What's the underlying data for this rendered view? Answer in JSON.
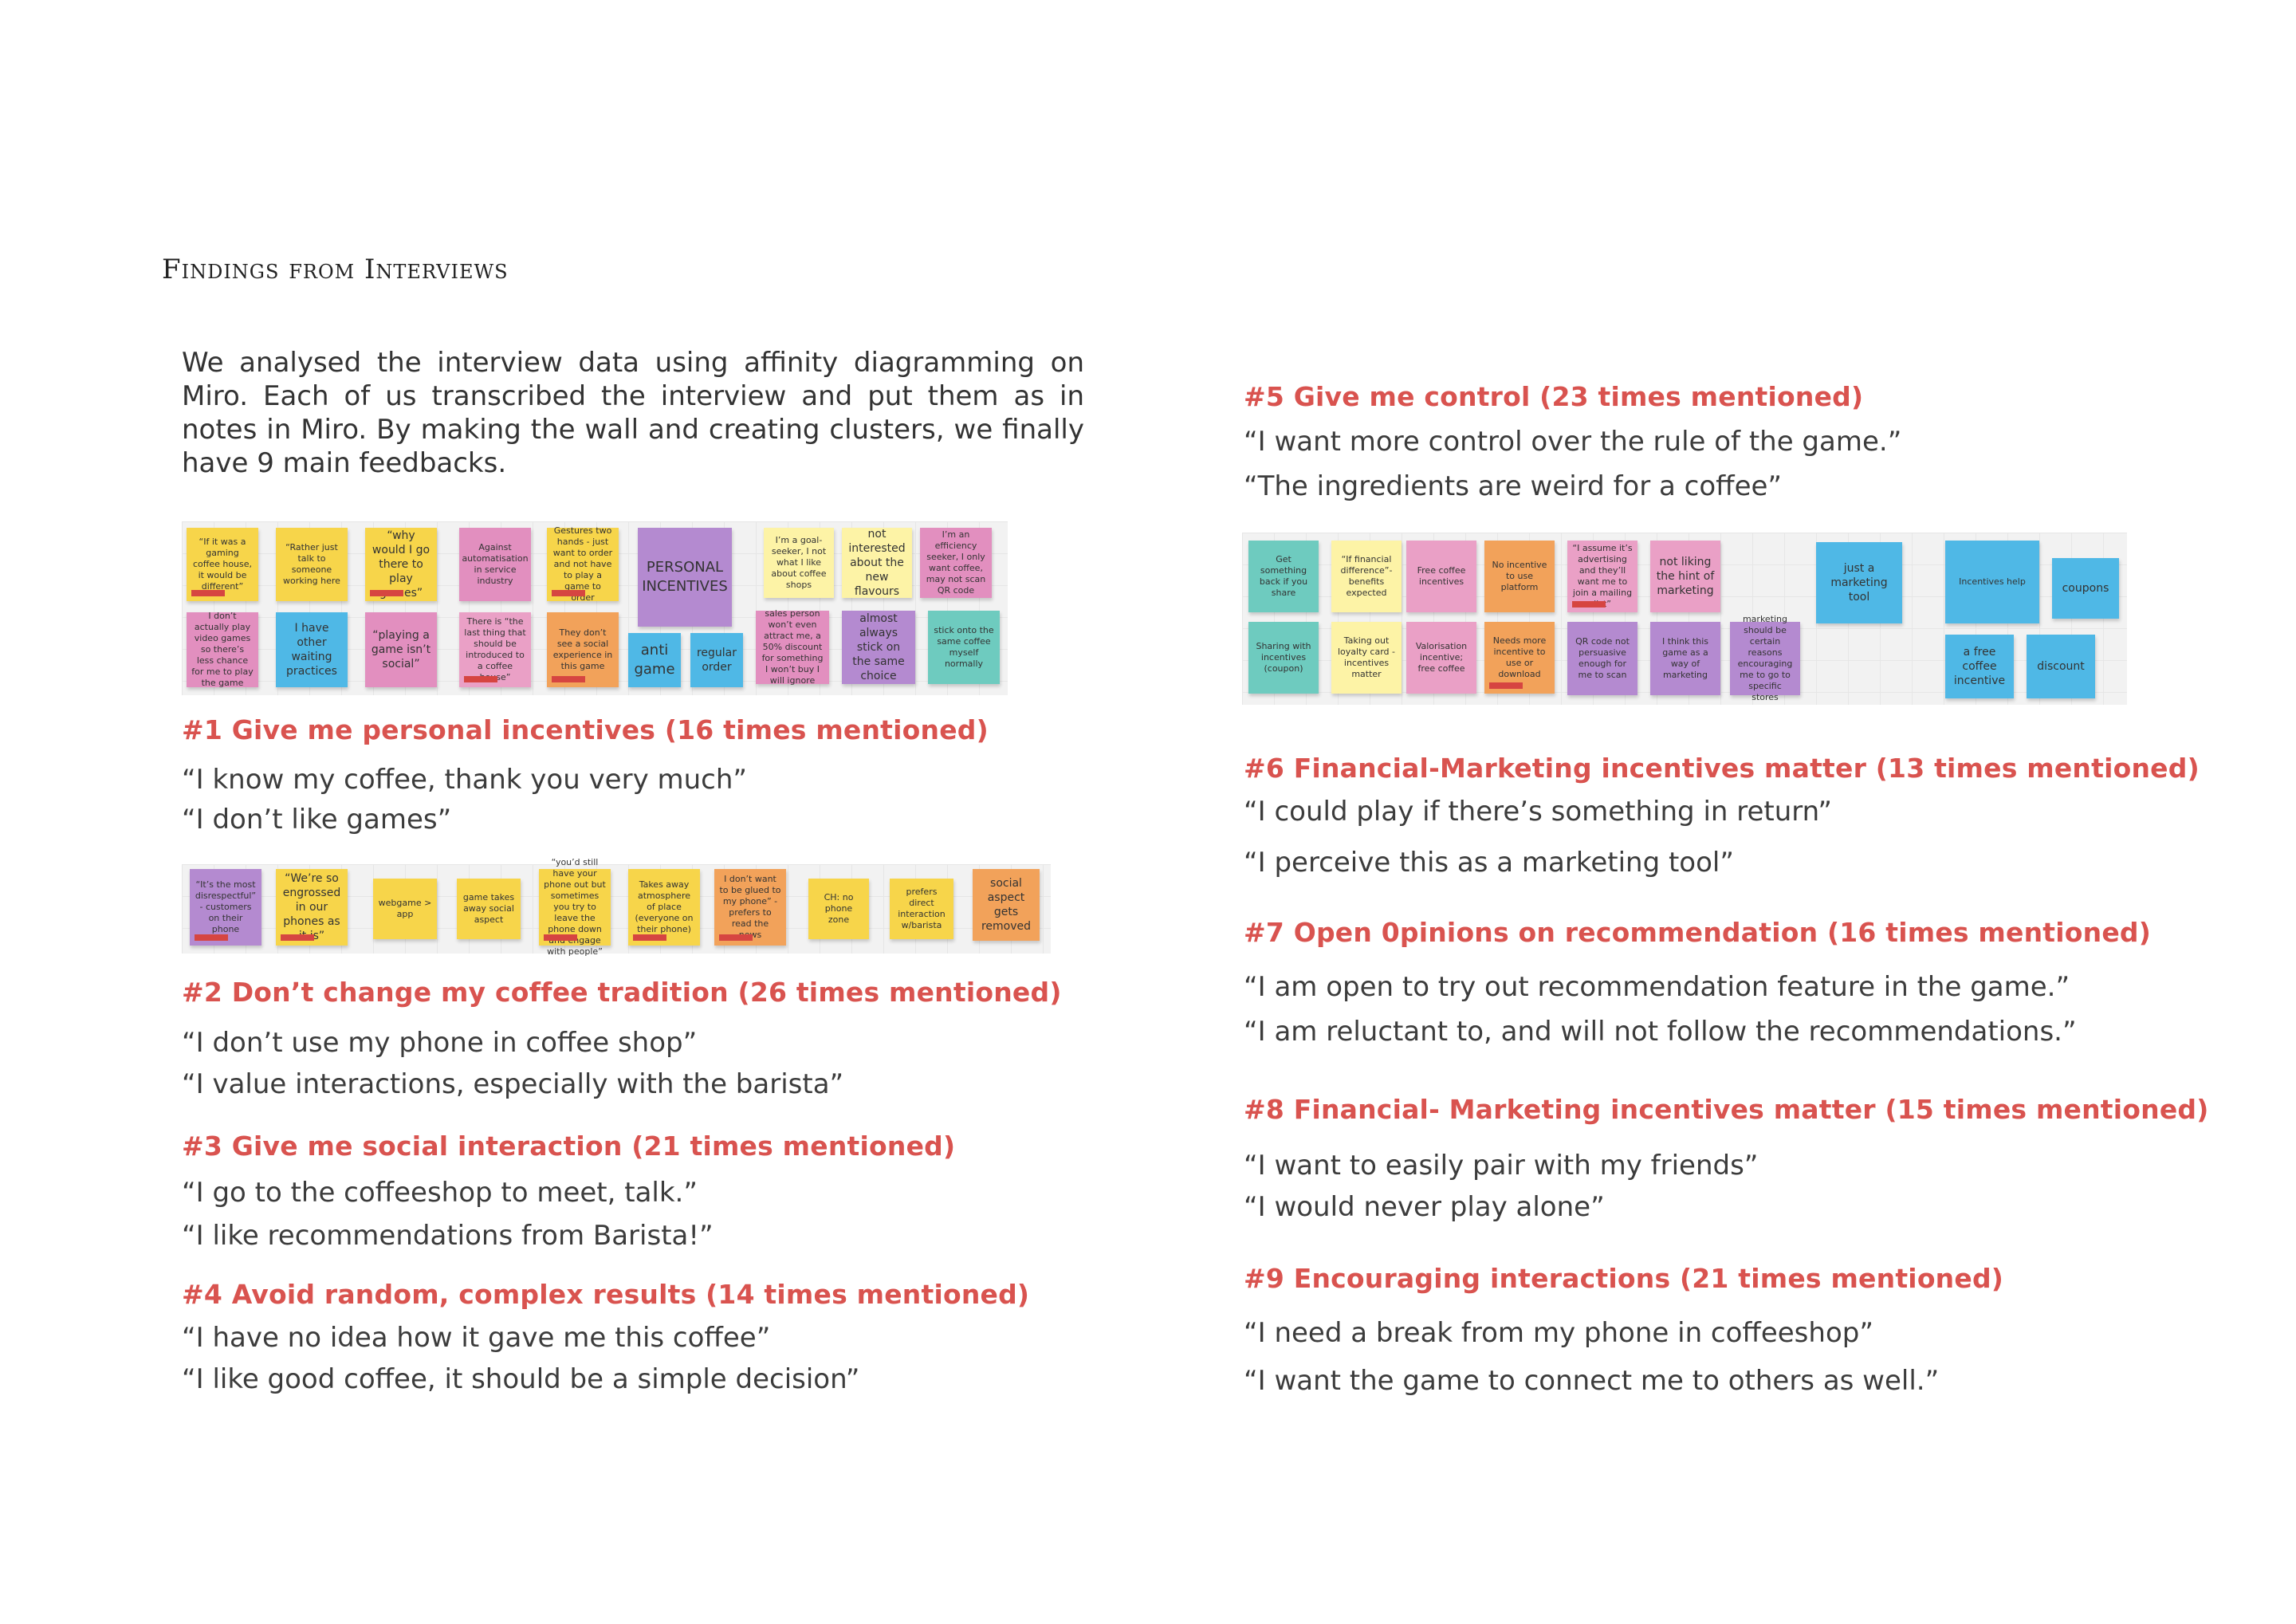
{
  "title": "Findings from Interviews",
  "intro": "We analysed the interview data using affinity diagramming on Miro. Each of us transcribed the interview and put them as in notes in Miro. By making the wall and creating clusters, we finally have 9 main feedbacks.",
  "findings": [
    {
      "heading": "#1 Give me personal incentives (16 times mentioned)",
      "quotes": [
        "“I know my coffee, thank you very much”",
        "“I don’t like games”"
      ]
    },
    {
      "heading": "#2 Don’t change my coffee tradition (26 times mentioned)",
      "quotes": [
        "“I don’t use my phone in coffee shop”",
        "“I value interactions, especially with the barista”"
      ]
    },
    {
      "heading": "#3 Give me social interaction (21 times mentioned)",
      "quotes": [
        "“I go to the coffeeshop to meet, talk.”",
        "“I like recommendations from Barista!”"
      ]
    },
    {
      "heading": "#4 Avoid random, complex results (14 times mentioned)",
      "quotes": [
        "“I have no idea how it gave me this coffee”",
        "“I like good coffee, it should be a simple decision”"
      ]
    },
    {
      "heading": "#5 Give me control  (23 times mentioned)",
      "quotes": [
        "“I want more control over the rule of the game.”",
        "“The ingredients are weird for a coffee”"
      ]
    },
    {
      "heading": "#6 Financial-Marketing incentives matter (13 times mentioned)",
      "quotes": [
        "“I could play if there’s something in return”",
        "“I perceive this as a marketing tool”"
      ]
    },
    {
      "heading": "#7 Open 0pinions on recommendation (16 times mentioned)",
      "quotes": [
        "“I am open to try out recommendation feature in the game.”",
        "“I am reluctant to, and will not follow the recommendations.”"
      ]
    },
    {
      "heading": "#8 Financial- Marketing incentives matter (15 times mentioned)",
      "quotes": [
        "“I want to easily pair with my friends”",
        "“I would never play alone”"
      ]
    },
    {
      "heading": "#9 Encouraging interactions (21 times mentioned)",
      "quotes": [
        "“I need a break from my phone in coffeeshop”",
        "“I want the game to connect me to others as well.”"
      ]
    }
  ],
  "board1": {
    "notes": [
      "“If it was a gaming coffee house, it would be different”",
      "“Rather just talk to someone working here",
      "“why would I go there to play games”",
      "Against automatisation in service industry",
      "Gestures two hands - just want to order and not have to play a game to order",
      "PERSONAL INCENTIVES",
      "I’m a goal-seeker, I not what I like about coffee shops",
      "not interested about the new flavours",
      "I’m an efficiency seeker, I only want coffee, may not scan QR code",
      "I don’t actually play video games so there’s less chance for me to play the game",
      "I have other waiting practices",
      "“playing a game isn’t social”",
      "There is “the last thing that should be introduced to a coffee house”",
      "They don’t see a social experience in this game",
      "anti game",
      "regular order",
      "sales person won’t even attract me, a 50% discount for something I won’t buy I will ignore",
      "almost always stick on the same choice",
      "stick onto the same coffee myself normally"
    ]
  },
  "board2": {
    "notes": [
      "“It’s the most disrespectful” - customers on their phone",
      "“We’re so engrossed in our phones as it is”",
      "webgame > app",
      "game takes away social aspect",
      "“you’d still have your phone out but sometimes you try to leave the phone down and engage with people”",
      "Takes away atmosphere of place (everyone on their phone)",
      "I don’t want to be glued to my phone” - prefers to read the news",
      "CH: no phone zone",
      "prefers direct interaction w/barista",
      "social aspect gets removed"
    ]
  },
  "board3": {
    "notes": [
      "Get something back if you share",
      "“If financial difference”- benefits expected",
      "Free coffee incentives",
      "No incentive to use platform",
      "“I assume it’s advertising and they’ll want me to join a mailing list”",
      "not liking the hint of marketing",
      "just a marketing tool",
      "Incentives help",
      "coupons",
      "Sharing with incentives (coupon)",
      "Taking out loyalty card - incentives matter",
      "Valorisation incentive; free coffee",
      "Needs more incentive to use or download",
      "QR code not persuasive enough for me to scan",
      "I think this game as a way of marketing",
      "marketing should be certain reasons encouraging me to go to specific stores",
      "a free coffee incentive",
      "discount"
    ]
  },
  "colors": {
    "heading": "#d9534f",
    "text": "#3c3c3c"
  }
}
